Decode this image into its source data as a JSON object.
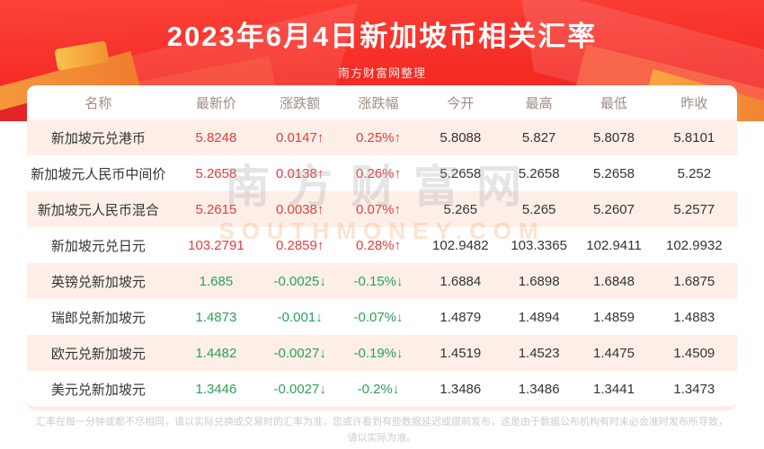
{
  "banner": {
    "title": "2023年6月4日新加坡币相关汇率",
    "subtitle": "南方财富网整理"
  },
  "table": {
    "columns": [
      "名称",
      "最新价",
      "涨跌额",
      "涨跌幅",
      "今开",
      "最高",
      "最低",
      "昨收"
    ],
    "rows": [
      {
        "name": "新加坡元兑港币",
        "latest": "5.8248",
        "change": "0.0147",
        "change_pct": "0.25%",
        "direction": "up",
        "open": "5.8088",
        "high": "5.827",
        "low": "5.8078",
        "prev_close": "5.8101"
      },
      {
        "name": "新加坡元人民币中间价",
        "latest": "5.2658",
        "change": "0.0138",
        "change_pct": "0.26%",
        "direction": "up",
        "open": "5.2658",
        "high": "5.2658",
        "low": "5.2658",
        "prev_close": "5.252"
      },
      {
        "name": "新加坡元人民币混合",
        "latest": "5.2615",
        "change": "0.0038",
        "change_pct": "0.07%",
        "direction": "up",
        "open": "5.265",
        "high": "5.265",
        "low": "5.2607",
        "prev_close": "5.2577"
      },
      {
        "name": "新加坡元兑日元",
        "latest": "103.2791",
        "change": "0.2859",
        "change_pct": "0.28%",
        "direction": "up",
        "open": "102.9482",
        "high": "103.3365",
        "low": "102.9411",
        "prev_close": "102.9932"
      },
      {
        "name": "英镑兑新加坡元",
        "latest": "1.685",
        "change": "-0.0025",
        "change_pct": "-0.15%",
        "direction": "down",
        "open": "1.6884",
        "high": "1.6898",
        "low": "1.6848",
        "prev_close": "1.6875"
      },
      {
        "name": "瑞郎兑新加坡元",
        "latest": "1.4873",
        "change": "-0.001",
        "change_pct": "-0.07%",
        "direction": "down",
        "open": "1.4879",
        "high": "1.4894",
        "low": "1.4859",
        "prev_close": "1.4883"
      },
      {
        "name": "欧元兑新加坡元",
        "latest": "1.4482",
        "change": "-0.0027",
        "change_pct": "-0.19%",
        "direction": "down",
        "open": "1.4519",
        "high": "1.4523",
        "low": "1.4475",
        "prev_close": "1.4509"
      },
      {
        "name": "美元兑新加坡元",
        "latest": "1.3446",
        "change": "-0.0027",
        "change_pct": "-0.2%",
        "direction": "down",
        "open": "1.3486",
        "high": "1.3486",
        "low": "1.3441",
        "prev_close": "1.3473"
      }
    ]
  },
  "glyphs": {
    "arrow_up": "↑",
    "arrow_down": "↓"
  },
  "watermark": {
    "text": "南方财富网",
    "subtext": "SOUTHMONEY.COM"
  },
  "disclaimer": {
    "line1": "汇率在每一分钟或都不尽相同，请以实际兑换或交易时的汇率为准，您或许看到有些数据延迟或提前发布，这是由于数据公布机构有时未必会准时发布所导致，",
    "line2": "请以实际为准。"
  },
  "colors": {
    "banner_red": "#f52d26",
    "up": "#e23c3a",
    "down": "#2ca05a",
    "row_alt": "#fdefe8"
  }
}
